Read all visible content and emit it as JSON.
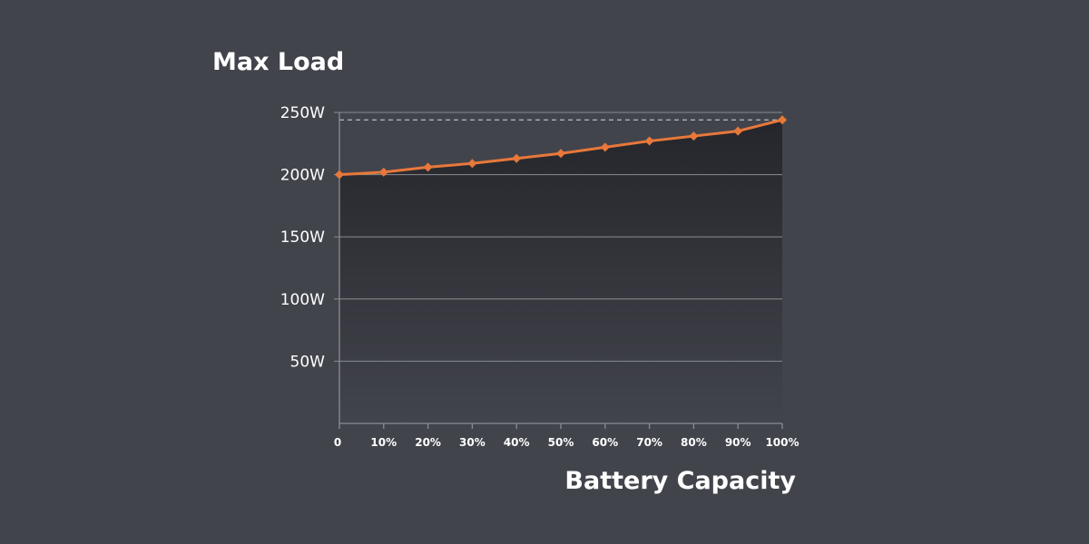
{
  "chart_data": {
    "type": "line",
    "title": "",
    "ylabel": "Max Load",
    "xlabel": "Battery Capacity",
    "x_ticks": [
      "0",
      "10%",
      "20%",
      "30%",
      "40%",
      "50%",
      "60%",
      "70%",
      "80%",
      "90%",
      "100%"
    ],
    "y_ticks": [
      {
        "value": 50,
        "label": "50W"
      },
      {
        "value": 100,
        "label": "100W"
      },
      {
        "value": 150,
        "label": "150W"
      },
      {
        "value": 200,
        "label": "200W"
      },
      {
        "value": 250,
        "label": "250W"
      }
    ],
    "x": [
      0,
      10,
      20,
      30,
      40,
      50,
      60,
      70,
      80,
      90,
      100
    ],
    "series": [
      {
        "values": [
          200,
          202,
          206,
          209,
          213,
          217,
          222,
          227,
          231,
          235,
          244
        ]
      }
    ],
    "xlim": [
      0,
      100
    ],
    "ylim": [
      0,
      250
    ],
    "max_reference_value": 244,
    "grid": true,
    "colors": {
      "background": "#42444c",
      "line": "#e8783a",
      "grid": "#8a8c93",
      "reference": "#b8bac0",
      "area_top": "#25262b",
      "area_bottom": "#42444c"
    }
  }
}
